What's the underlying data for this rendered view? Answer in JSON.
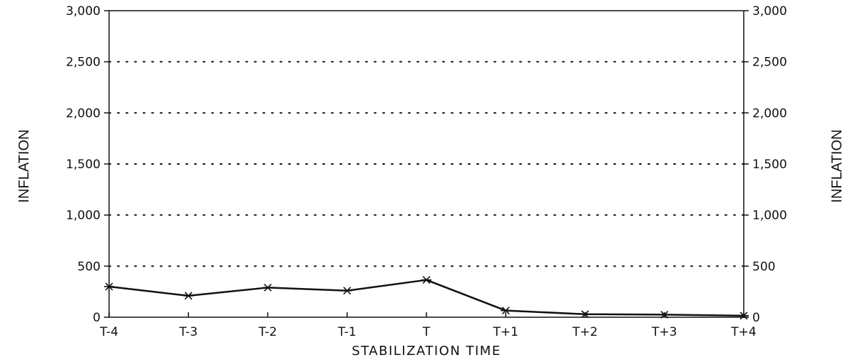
{
  "chart_data": {
    "type": "line",
    "title": "",
    "xlabel": "STABILIZATION TIME",
    "ylabel_left": "INFLATION",
    "ylabel_right": "INFLATION",
    "categories": [
      "T-4",
      "T-3",
      "T-2",
      "T-1",
      "T",
      "T+1",
      "T+2",
      "T+3",
      "T+4"
    ],
    "series": [
      {
        "values": [
          300,
          210,
          290,
          260,
          365,
          65,
          30,
          25,
          15
        ]
      }
    ],
    "ylim": [
      0,
      3000
    ],
    "yticks": [
      0,
      500,
      1000,
      1500,
      2000,
      2500,
      3000
    ],
    "ytick_labels": [
      "0",
      "500",
      "1,000",
      "1,500",
      "2,000",
      "2,500",
      "3,000"
    ],
    "grid": "horizontal dotted",
    "marker": "asterisk",
    "colors": {
      "line": "#111111",
      "axis": "#111111",
      "grid": "#111111"
    }
  }
}
